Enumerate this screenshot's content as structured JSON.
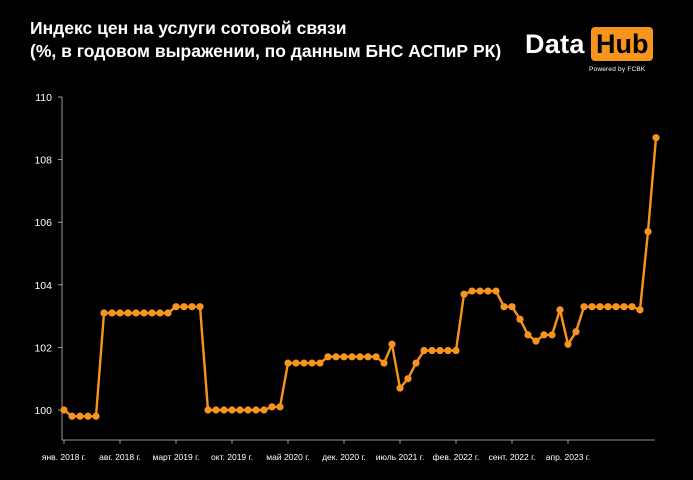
{
  "header": {
    "title_line1": "Индекс цен на услуги сотовой связи",
    "title_line2": "(%, в годовом выражении, по данным БНС АСПиР РК)"
  },
  "logo": {
    "word1": "Data",
    "word2": "Hub",
    "tagline": "Powered by FCBK",
    "accent_color": "#f7941d"
  },
  "chart_data": {
    "type": "line",
    "title": "Индекс цен на услуги сотовой связи",
    "subtitle": "(%, в годовом выражении, по данным БНС АСПиР РК)",
    "xlabel": "",
    "ylabel": "",
    "ylim": [
      99.2,
      110
    ],
    "yticks": [
      100,
      102,
      104,
      106,
      108,
      110
    ],
    "ytick_labels": [
      "100",
      "102",
      "104",
      "106",
      "108",
      "110"
    ],
    "xtick_labels": [
      "янв. 2018 г.",
      "авг. 2018 г.",
      "март 2019 г.",
      "окт. 2019 г.",
      "май 2020 г.",
      "дек. 2020 г.",
      "июль 2021 г.",
      "фев. 2022 г.",
      "сент. 2022 г.",
      "апр. 2023 г."
    ],
    "xtick_month_index": [
      0,
      7,
      14,
      21,
      28,
      35,
      42,
      49,
      56,
      63
    ],
    "grid": false,
    "legend": "none",
    "series_color": "#f7941d",
    "series": [
      {
        "values": [
          100.0,
          99.8,
          99.8,
          99.8,
          99.8,
          103.1,
          103.1,
          103.1,
          103.1,
          103.1,
          103.1,
          103.1,
          103.1,
          103.1,
          103.3,
          103.3,
          103.3,
          103.3,
          100.0,
          100.0,
          100.0,
          100.0,
          100.0,
          100.0,
          100.0,
          100.0,
          100.1,
          100.1,
          101.5,
          101.5,
          101.5,
          101.5,
          101.5,
          101.7,
          101.7,
          101.7,
          101.7,
          101.7,
          101.7,
          101.7,
          101.5,
          102.1,
          100.7,
          101.0,
          101.5,
          101.9,
          101.9,
          101.9,
          101.9,
          101.9,
          103.7,
          103.8,
          103.8,
          103.8,
          103.8,
          103.3,
          103.3,
          102.9,
          102.4,
          102.2,
          102.4,
          102.4,
          103.2,
          102.1,
          102.5,
          103.3,
          103.3,
          103.3,
          103.3,
          103.3,
          103.3,
          103.3,
          103.2,
          105.7,
          108.7
        ]
      }
    ]
  }
}
